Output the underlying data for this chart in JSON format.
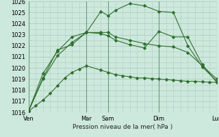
{
  "bg_color": "#cde8dc",
  "grid_color": "#b0ccbf",
  "line_color": "#2d6e2d",
  "title": "Pression niveau de la mer( hPa )",
  "xlim": [
    0,
    13
  ],
  "ylim": [
    1016,
    1026
  ],
  "yticks": [
    1016,
    1017,
    1018,
    1019,
    1020,
    1021,
    1022,
    1023,
    1024,
    1025,
    1026
  ],
  "day_labels": [
    "Ven",
    "Mar",
    "Sam",
    "Dim",
    "Lun"
  ],
  "day_positions": [
    0,
    4,
    5.5,
    9,
    13
  ],
  "vline_color": "#6a9a80",
  "series": [
    {
      "x": [
        0,
        0.5,
        1,
        1.5,
        2,
        2.5,
        3,
        3.5,
        4,
        5,
        5.5,
        6,
        6.5,
        7,
        7.5,
        8,
        8.5,
        9,
        9.5,
        10,
        10.5,
        11,
        11.5,
        12,
        12.5,
        13
      ],
      "y": [
        1016.1,
        1016.6,
        1017.1,
        1017.7,
        1018.4,
        1019.1,
        1019.6,
        1019.9,
        1020.2,
        1019.8,
        1019.6,
        1019.4,
        1019.3,
        1019.2,
        1019.1,
        1019.1,
        1019.05,
        1019.0,
        1018.95,
        1018.9,
        1018.85,
        1018.8,
        1018.8,
        1018.75,
        1018.72,
        1018.7
      ],
      "marker": "D",
      "ms": 2.5,
      "lw": 0.8
    },
    {
      "x": [
        0,
        1,
        2,
        3,
        4,
        5,
        5.5,
        6,
        7,
        8,
        9,
        10,
        11,
        12,
        13
      ],
      "y": [
        1016.1,
        1019.1,
        1021.6,
        1022.1,
        1023.2,
        1023.1,
        1022.9,
        1022.5,
        1022.1,
        1021.8,
        1023.3,
        1022.8,
        1022.8,
        1020.3,
        1018.7
      ],
      "marker": "D",
      "ms": 2.5,
      "lw": 0.8
    },
    {
      "x": [
        0,
        1,
        2,
        3,
        4,
        5,
        5.5,
        6,
        7,
        8,
        9,
        10,
        11,
        12,
        13
      ],
      "y": [
        1016.1,
        1019.5,
        1021.5,
        1022.8,
        1023.2,
        1025.1,
        1024.7,
        1025.2,
        1025.8,
        1025.6,
        1025.1,
        1025.0,
        1022.0,
        1020.1,
        1018.8
      ],
      "marker": "D",
      "ms": 2.5,
      "lw": 0.8
    },
    {
      "x": [
        0,
        1,
        2,
        3,
        4,
        5,
        5.5,
        6,
        7,
        8,
        9,
        10,
        11,
        12,
        13
      ],
      "y": [
        1016.1,
        1019.0,
        1021.1,
        1022.3,
        1023.2,
        1023.2,
        1023.2,
        1022.8,
        1022.5,
        1022.2,
        1022.0,
        1021.9,
        1021.4,
        1020.2,
        1019.0
      ],
      "marker": "D",
      "ms": 2.5,
      "lw": 0.8
    }
  ]
}
